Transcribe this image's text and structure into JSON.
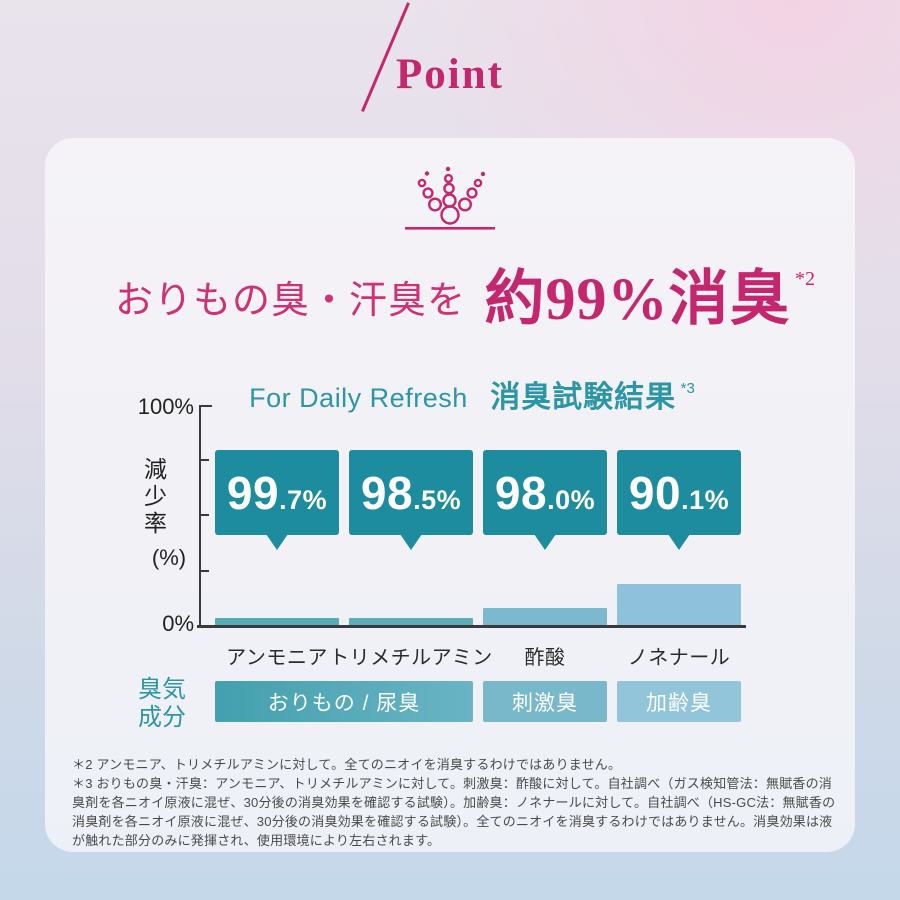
{
  "colors": {
    "magenta": "#c5276e",
    "headline_pink": "#cf3174",
    "teal": "#2d96a6",
    "callout_teal": "#1e8c9f",
    "axis": "#3a3a3a",
    "footnote_text": "#4a4a4a",
    "bar_colors": [
      "#58acb6",
      "#5cadb7",
      "#7cb9cf",
      "#8ec2dc"
    ],
    "odor_box_colors": [
      [
        "#43a0ae",
        "#6ab4c4"
      ],
      [
        "#79b7cb",
        "#79b7cb"
      ],
      [
        "#93c5da",
        "#93c5da"
      ]
    ]
  },
  "header": {
    "point_label": "Point"
  },
  "headline": {
    "prefix": "おりもの臭・汗臭を",
    "highlight": "約99%消臭",
    "note_ref": "*2"
  },
  "chart_data": {
    "type": "bar",
    "title_en": "For Daily Refresh",
    "title_ja": "消臭試験結果",
    "title_note_ref": "*3",
    "ylabel": "減少率",
    "ylabel_unit": "(%)",
    "ylim": [
      0,
      100
    ],
    "y_axis_top_label": "100%",
    "y_axis_bottom_label": "0%",
    "grid": false,
    "legend_position": "none",
    "categories": [
      "アンモニア",
      "トリメチルアミン",
      "酢酸",
      "ノネナール"
    ],
    "series": [
      {
        "name": "減少率(%)",
        "values": [
          99.7,
          98.5,
          98.0,
          90.1
        ]
      }
    ],
    "callouts": [
      {
        "big": "99",
        "small": ".7%",
        "value": 99.7
      },
      {
        "big": "98",
        "small": ".5%",
        "value": 98.5
      },
      {
        "big": "98",
        "small": ".0%",
        "value": 98.0
      },
      {
        "big": "90",
        "small": ".1%",
        "value": 90.1
      }
    ],
    "residual_values": [
      0.3,
      1.5,
      2.0,
      9.9
    ],
    "bar_display_height_pct": [
      3.2,
      3.2,
      7.7,
      18.6
    ]
  },
  "odor_row": {
    "label_line1": "臭気",
    "label_line2": "成分",
    "groups": [
      {
        "label": "おりもの / 尿臭",
        "columns": [
          0,
          1
        ]
      },
      {
        "label": "刺激臭",
        "columns": [
          2
        ]
      },
      {
        "label": "加齢臭",
        "columns": [
          3
        ]
      }
    ]
  },
  "footnotes": [
    "＊2 アンモニア、トリメチルアミンに対して。全てのニオイを消臭するわけではありません。",
    "＊3 おりもの臭・汗臭：アンモニア、トリメチルアミンに対して。刺激臭：酢酸に対して。自社調べ（ガス検知管法：無賦香の消臭剤を各ニオイ原液に混ぜ、30分後の消臭効果を確認する試験）。加齢臭：ノネナールに対して。自社調べ（HS-GC法：無賦香の消臭剤を各ニオイ原液に混ぜ、30分後の消臭効果を確認する試験）。全てのニオイを消臭するわけではありません。消臭効果は液が触れた部分のみに発揮され、使用環境により左右されます。"
  ]
}
